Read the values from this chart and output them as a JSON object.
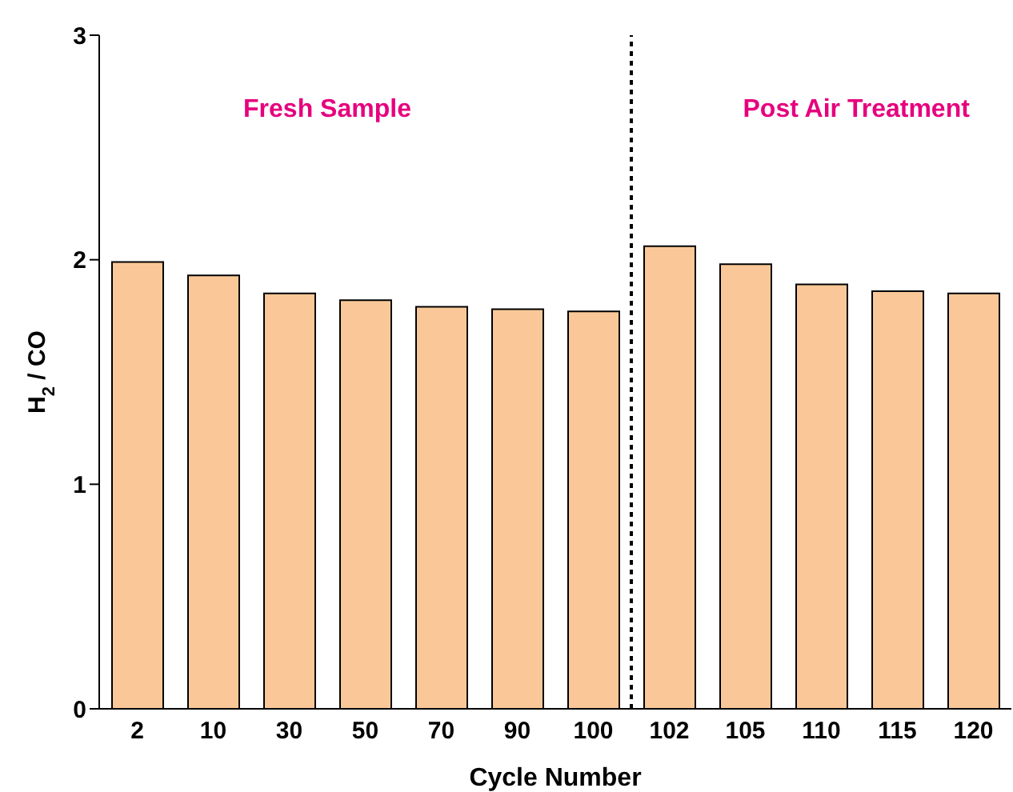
{
  "chart_data": {
    "type": "bar",
    "xlabel": "Cycle Number",
    "ylabel": "H$_{2}$ / CO",
    "categories": [
      "2",
      "10",
      "30",
      "50",
      "70",
      "90",
      "100",
      "102",
      "105",
      "110",
      "115",
      "120"
    ],
    "values": [
      1.99,
      1.93,
      1.85,
      1.82,
      1.79,
      1.78,
      1.77,
      2.06,
      1.98,
      1.89,
      1.86,
      1.85
    ],
    "color": "#fac898",
    "ylim": [
      0,
      3
    ],
    "yticks": [
      0,
      1,
      2,
      3
    ],
    "grid": false,
    "annotations": [
      "Fresh Sample",
      "Post Air Treatment"
    ]
  }
}
